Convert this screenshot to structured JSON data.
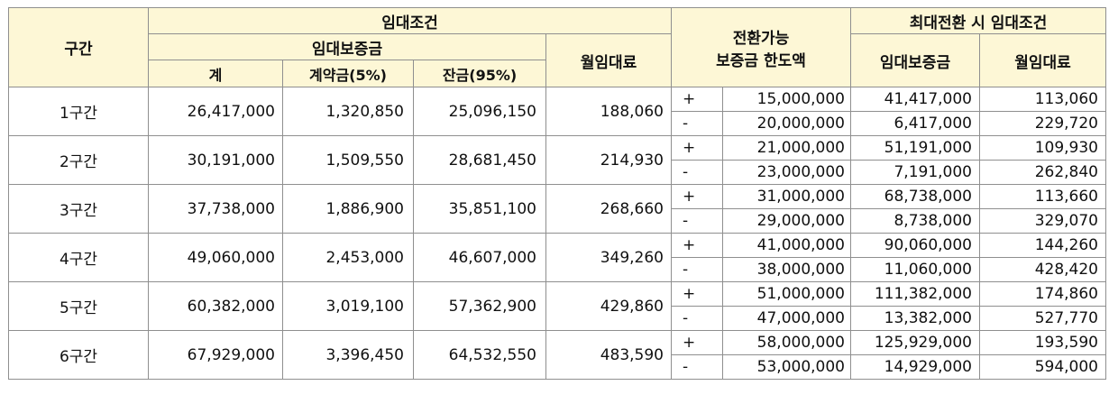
{
  "header": {
    "section": "구간",
    "rent_conditions": "임대조건",
    "deposit": "임대보증금",
    "total": "계",
    "contract": "계약금(5%)",
    "balance": "잔금(95%)",
    "monthly_rent": "월임대료",
    "conversion_limit_line1": "전환가능",
    "conversion_limit_line2": "보증금 한도액",
    "max_conversion": "최대전환 시 임대조건",
    "max_deposit": "임대보증금",
    "max_rent": "월임대료"
  },
  "rows": [
    {
      "section": "1구간",
      "total": "26,417,000",
      "contract": "1,320,850",
      "balance": "25,096,150",
      "rent": "188,060",
      "plus": {
        "sign": "+",
        "limit": "15,000,000",
        "deposit": "41,417,000",
        "rent": "113,060"
      },
      "minus": {
        "sign": "-",
        "limit": "20,000,000",
        "deposit": "6,417,000",
        "rent": "229,720"
      }
    },
    {
      "section": "2구간",
      "total": "30,191,000",
      "contract": "1,509,550",
      "balance": "28,681,450",
      "rent": "214,930",
      "plus": {
        "sign": "+",
        "limit": "21,000,000",
        "deposit": "51,191,000",
        "rent": "109,930"
      },
      "minus": {
        "sign": "-",
        "limit": "23,000,000",
        "deposit": "7,191,000",
        "rent": "262,840"
      }
    },
    {
      "section": "3구간",
      "total": "37,738,000",
      "contract": "1,886,900",
      "balance": "35,851,100",
      "rent": "268,660",
      "plus": {
        "sign": "+",
        "limit": "31,000,000",
        "deposit": "68,738,000",
        "rent": "113,660"
      },
      "minus": {
        "sign": "-",
        "limit": "29,000,000",
        "deposit": "8,738,000",
        "rent": "329,070"
      }
    },
    {
      "section": "4구간",
      "total": "49,060,000",
      "contract": "2,453,000",
      "balance": "46,607,000",
      "rent": "349,260",
      "plus": {
        "sign": "+",
        "limit": "41,000,000",
        "deposit": "90,060,000",
        "rent": "144,260"
      },
      "minus": {
        "sign": "-",
        "limit": "38,000,000",
        "deposit": "11,060,000",
        "rent": "428,420"
      }
    },
    {
      "section": "5구간",
      "total": "60,382,000",
      "contract": "3,019,100",
      "balance": "57,362,900",
      "rent": "429,860",
      "plus": {
        "sign": "+",
        "limit": "51,000,000",
        "deposit": "111,382,000",
        "rent": "174,860"
      },
      "minus": {
        "sign": "-",
        "limit": "47,000,000",
        "deposit": "13,382,000",
        "rent": "527,770"
      }
    },
    {
      "section": "6구간",
      "total": "67,929,000",
      "contract": "3,396,450",
      "balance": "64,532,550",
      "rent": "483,590",
      "plus": {
        "sign": "+",
        "limit": "58,000,000",
        "deposit": "125,929,000",
        "rent": "193,590"
      },
      "minus": {
        "sign": "-",
        "limit": "53,000,000",
        "deposit": "14,929,000",
        "rent": "594,000"
      }
    }
  ]
}
